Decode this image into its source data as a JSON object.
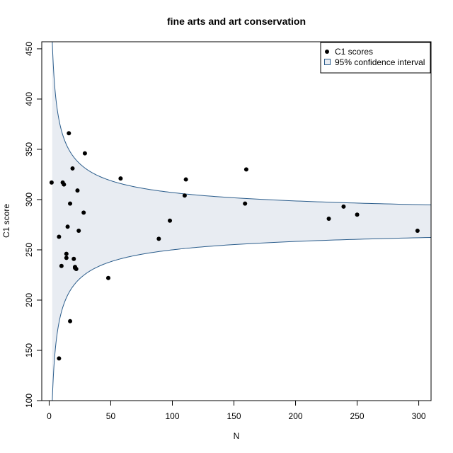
{
  "chart_data": {
    "type": "scatter",
    "title": "fine arts and art conservation",
    "xlabel": "N",
    "ylabel": "C1 score",
    "xlim": [
      -6,
      310
    ],
    "ylim": [
      100,
      457
    ],
    "xticks": [
      0,
      50,
      100,
      150,
      200,
      250,
      300
    ],
    "yticks": [
      100,
      150,
      200,
      250,
      300,
      350,
      400,
      450
    ],
    "band": {
      "center": 278.5,
      "k": 285,
      "n_min": 2.5,
      "n_max": 310
    },
    "legend": {
      "position": "top-right",
      "points_label": "C1 scores",
      "band_label": "95% confidence interval"
    },
    "colors": {
      "band_fill": "#e8ecf2",
      "band_line": "#2b5d8c",
      "points": "#000000"
    },
    "points": [
      {
        "x": 2,
        "y": 317
      },
      {
        "x": 8,
        "y": 142
      },
      {
        "x": 8,
        "y": 263
      },
      {
        "x": 10,
        "y": 234
      },
      {
        "x": 11,
        "y": 317
      },
      {
        "x": 12,
        "y": 315
      },
      {
        "x": 14,
        "y": 242
      },
      {
        "x": 14,
        "y": 246
      },
      {
        "x": 15,
        "y": 273
      },
      {
        "x": 16,
        "y": 366
      },
      {
        "x": 17,
        "y": 296
      },
      {
        "x": 17,
        "y": 179
      },
      {
        "x": 19,
        "y": 331
      },
      {
        "x": 20,
        "y": 241
      },
      {
        "x": 21,
        "y": 232
      },
      {
        "x": 21,
        "y": 233
      },
      {
        "x": 22,
        "y": 231
      },
      {
        "x": 23,
        "y": 309
      },
      {
        "x": 24,
        "y": 269
      },
      {
        "x": 28,
        "y": 287
      },
      {
        "x": 29,
        "y": 346
      },
      {
        "x": 48,
        "y": 222
      },
      {
        "x": 58,
        "y": 321
      },
      {
        "x": 89,
        "y": 261
      },
      {
        "x": 98,
        "y": 279
      },
      {
        "x": 110,
        "y": 304
      },
      {
        "x": 111,
        "y": 320
      },
      {
        "x": 159,
        "y": 296
      },
      {
        "x": 160,
        "y": 330
      },
      {
        "x": 227,
        "y": 281
      },
      {
        "x": 239,
        "y": 293
      },
      {
        "x": 250,
        "y": 285
      },
      {
        "x": 299,
        "y": 269
      }
    ]
  }
}
